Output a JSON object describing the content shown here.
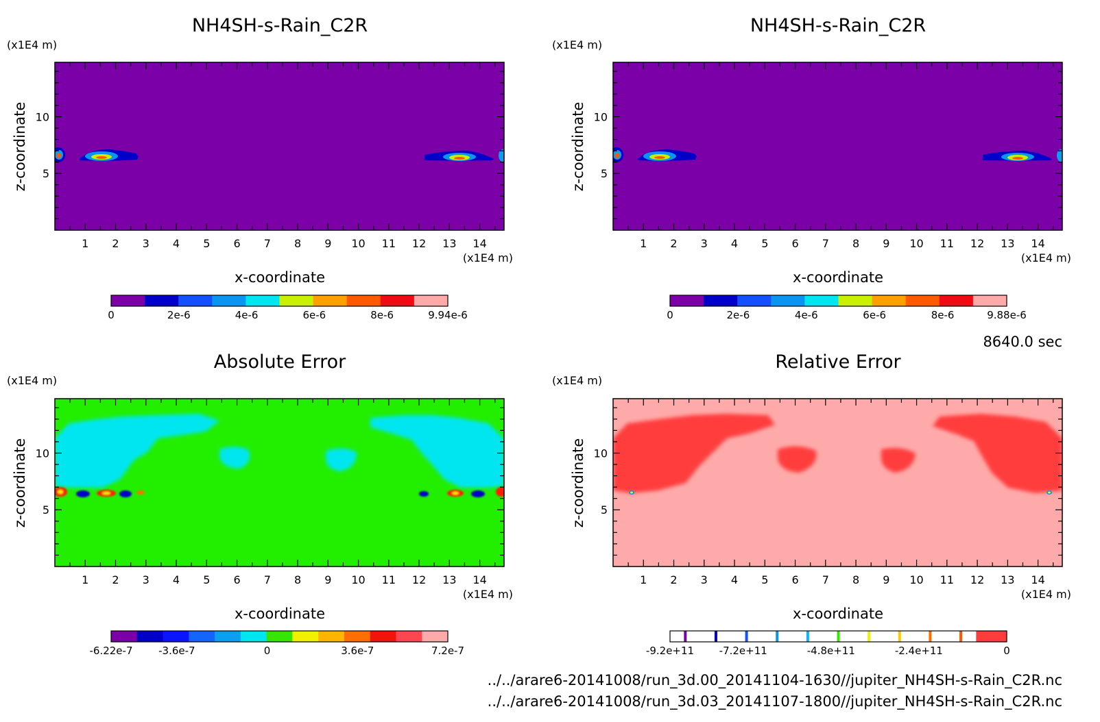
{
  "footer": {
    "time": "8640.0 sec",
    "file_1": "../../arare6-20141008/run_3d.00_20141104-1630//jupiter_NH4SH-s-Rain_C2R.nc",
    "file_2": "../../arare6-20141008/run_3d.03_20141107-1800//jupiter_NH4SH-s-Rain_C2R.nc"
  },
  "chart_data": [
    {
      "type": "heatmap",
      "title": "NH4SH-s-Rain_C2R",
      "xlabel": "x-coordinate",
      "ylabel": "z-coordinate",
      "x_unit": "(x1E4 m)",
      "y_unit": "(x1E4 m)",
      "xlim": [
        0,
        14.8
      ],
      "ylim": [
        0,
        14.8
      ],
      "x_ticks": [
        "1",
        "2",
        "3",
        "4",
        "5",
        "6",
        "7",
        "8",
        "9",
        "10",
        "11",
        "12",
        "13",
        "14"
      ],
      "y_ticks": [
        "5",
        "10"
      ],
      "background_color": "#7c00a8",
      "features": [
        {
          "x": [
            0.0,
            0.3
          ],
          "z": [
            6.2,
            7.2
          ],
          "level": "high"
        },
        {
          "x": [
            0.8,
            2.8
          ],
          "z": [
            6.3,
            7.1
          ],
          "level": "high"
        },
        {
          "x": [
            12.3,
            14.4
          ],
          "z": [
            6.3,
            7.1
          ],
          "level": "high"
        },
        {
          "x": [
            14.6,
            14.8
          ],
          "z": [
            6.2,
            7.2
          ],
          "level": "high"
        }
      ],
      "colorbar": {
        "colors": [
          "#7c00a8",
          "#0000c8",
          "#1450ff",
          "#0a96f0",
          "#00e6f0",
          "#c8f000",
          "#ffa000",
          "#ff5a00",
          "#f00a14",
          "#ffaaaa"
        ],
        "labels": [
          "0",
          "2e-6",
          "4e-6",
          "6e-6",
          "8e-6",
          "9.94e-6"
        ],
        "min": 0,
        "max": 9.94e-06
      }
    },
    {
      "type": "heatmap",
      "title": "NH4SH-s-Rain_C2R",
      "xlabel": "x-coordinate",
      "ylabel": "z-coordinate",
      "x_unit": "(x1E4 m)",
      "y_unit": "(x1E4 m)",
      "xlim": [
        0,
        14.8
      ],
      "ylim": [
        0,
        14.8
      ],
      "x_ticks": [
        "1",
        "2",
        "3",
        "4",
        "5",
        "6",
        "7",
        "8",
        "9",
        "10",
        "11",
        "12",
        "13",
        "14"
      ],
      "y_ticks": [
        "5",
        "10"
      ],
      "background_color": "#7c00a8",
      "features": [
        {
          "x": [
            0.0,
            0.3
          ],
          "z": [
            6.2,
            7.2
          ],
          "level": "high"
        },
        {
          "x": [
            0.8,
            2.8
          ],
          "z": [
            6.3,
            7.1
          ],
          "level": "high"
        },
        {
          "x": [
            12.3,
            14.4
          ],
          "z": [
            6.3,
            7.1
          ],
          "level": "high"
        },
        {
          "x": [
            14.6,
            14.8
          ],
          "z": [
            6.2,
            7.2
          ],
          "level": "high"
        }
      ],
      "colorbar": {
        "colors": [
          "#7c00a8",
          "#0000c8",
          "#1450ff",
          "#0a96f0",
          "#00e6f0",
          "#c8f000",
          "#ffa000",
          "#ff5a00",
          "#f00a14",
          "#ffaaaa"
        ],
        "labels": [
          "0",
          "2e-6",
          "4e-6",
          "6e-6",
          "8e-6",
          "9.88e-6"
        ],
        "min": 0,
        "max": 9.88e-06
      }
    },
    {
      "type": "heatmap",
      "title": "Absolute Error",
      "xlabel": "x-coordinate",
      "ylabel": "z-coordinate",
      "x_unit": "(x1E4 m)",
      "y_unit": "(x1E4 m)",
      "xlim": [
        0,
        14.8
      ],
      "ylim": [
        0,
        14.8
      ],
      "x_ticks": [
        "1",
        "2",
        "3",
        "4",
        "5",
        "6",
        "7",
        "8",
        "9",
        "10",
        "11",
        "12",
        "13",
        "14"
      ],
      "y_ticks": [
        "5",
        "10"
      ],
      "background_color": "#22ee00",
      "features": [
        {
          "x": [
            0.0,
            4.5
          ],
          "z": [
            6.5,
            12.5
          ],
          "level": "low"
        },
        {
          "x": [
            5.3,
            6.3
          ],
          "z": [
            9.7,
            11.0
          ],
          "level": "low"
        },
        {
          "x": [
            8.5,
            9.8
          ],
          "z": [
            9.6,
            11.0
          ],
          "level": "low"
        },
        {
          "x": [
            10.3,
            14.8
          ],
          "z": [
            6.5,
            12.5
          ],
          "level": "low"
        },
        {
          "x": [
            0.0,
            3.0
          ],
          "z": [
            6.4,
            7.0
          ],
          "level": "extreme"
        },
        {
          "x": [
            12.0,
            14.8
          ],
          "z": [
            6.4,
            7.0
          ],
          "level": "extreme"
        }
      ],
      "colorbar": {
        "colors": [
          "#7c00a8",
          "#0000c8",
          "#0a14ff",
          "#1464ff",
          "#0aa0f0",
          "#00e6f0",
          "#37e600",
          "#f0f000",
          "#ffb400",
          "#ff6e00",
          "#f0140a",
          "#ff4650",
          "#ffaaaa"
        ],
        "labels": [
          "-6.22e-7",
          "-3.6e-7",
          "0",
          "3.6e-7",
          "7.2e-7"
        ],
        "min": -6.22e-07,
        "max": 7.2e-07
      }
    },
    {
      "type": "heatmap",
      "title": "Relative Error",
      "xlabel": "x-coordinate",
      "ylabel": "z-coordinate",
      "x_unit": "(x1E4 m)",
      "y_unit": "(x1E4 m)",
      "xlim": [
        0,
        14.8
      ],
      "ylim": [
        0,
        14.8
      ],
      "x_ticks": [
        "1",
        "2",
        "3",
        "4",
        "5",
        "6",
        "7",
        "8",
        "9",
        "10",
        "11",
        "12",
        "13",
        "14"
      ],
      "y_ticks": [
        "5",
        "10"
      ],
      "background_color": "#ffaaaa",
      "features": [
        {
          "x": [
            0.0,
            4.5
          ],
          "z": [
            6.0,
            12.5
          ],
          "level": "band"
        },
        {
          "x": [
            5.0,
            6.3
          ],
          "z": [
            9.5,
            11.5
          ],
          "level": "band"
        },
        {
          "x": [
            8.5,
            9.8
          ],
          "z": [
            9.5,
            11.0
          ],
          "level": "band"
        },
        {
          "x": [
            10.3,
            14.8
          ],
          "z": [
            6.0,
            12.5
          ],
          "level": "band"
        }
      ],
      "colorbar": {
        "colors": [
          "#ffffff",
          "#ffffff",
          "#ffffff",
          "#ffffff",
          "#ffffff",
          "#ffffff",
          "#ffffff",
          "#ffffff",
          "#ffffff",
          "#ffffff",
          "#ff3c3c"
        ],
        "lines": [
          "#7c00a8",
          "#0000c8",
          "#1450ff",
          "#0a96f0",
          "#0ab4ff",
          "#37e600",
          "#f0f000",
          "#ffc800",
          "#ff6e00",
          "#ff5a00"
        ],
        "labels": [
          "-9.2e+11",
          "-7.2e+11",
          "-4.8e+11",
          "-2.4e+11",
          "0"
        ],
        "min": -920000000000.0,
        "max": 0
      }
    }
  ]
}
